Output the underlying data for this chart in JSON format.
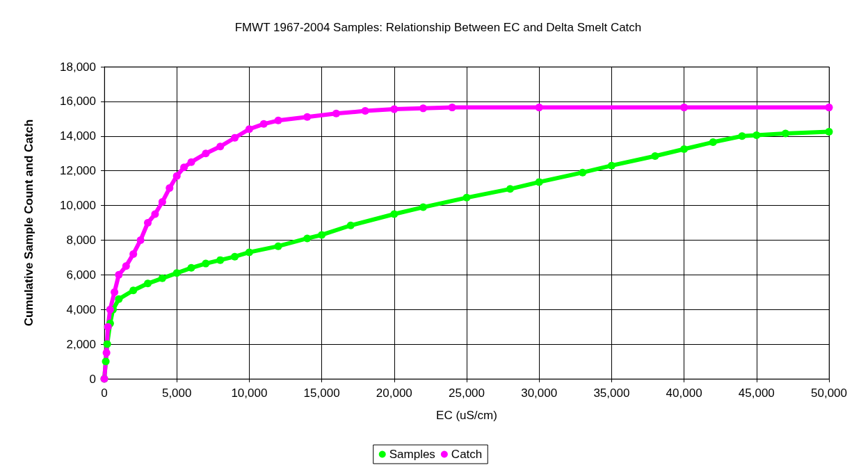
{
  "chart_data": {
    "type": "line",
    "title": "FMWT 1967-2004 Samples: Relationship Between EC and Delta Smelt Catch",
    "xlabel": "EC (uS/cm)",
    "ylabel": "Cumulative Sample Count and Catch",
    "xlim": [
      0,
      50000
    ],
    "xticks": [
      {
        "value": 0,
        "label": "0"
      },
      {
        "value": 5000,
        "label": "5,000"
      },
      {
        "value": 10000,
        "label": "10,000"
      },
      {
        "value": 15000,
        "label": "15,000"
      },
      {
        "value": 20000,
        "label": "20,000"
      },
      {
        "value": 25000,
        "label": "25,000"
      },
      {
        "value": 30000,
        "label": "30,000"
      },
      {
        "value": 35000,
        "label": "35,000"
      },
      {
        "value": 40000,
        "label": "40,000"
      },
      {
        "value": 45000,
        "label": "45,000"
      },
      {
        "value": 50000,
        "label": "50,000"
      }
    ],
    "ylim": [
      0,
      18000
    ],
    "yticks": [
      {
        "value": 0,
        "label": "0"
      },
      {
        "value": 2000,
        "label": "2,000"
      },
      {
        "value": 4000,
        "label": "4,000"
      },
      {
        "value": 6000,
        "label": "6,000"
      },
      {
        "value": 8000,
        "label": "8,000"
      },
      {
        "value": 10000,
        "label": "10,000"
      },
      {
        "value": 12000,
        "label": "12,000"
      },
      {
        "value": 14000,
        "label": "14,000"
      },
      {
        "value": 16000,
        "label": "16,000"
      },
      {
        "value": 18000,
        "label": "18,000"
      }
    ],
    "grid": true,
    "legend": "bottom",
    "marker": "circle",
    "series": [
      {
        "name": "Samples",
        "color": "#00ff00",
        "x": [
          0,
          100,
          200,
          400,
          600,
          1000,
          2000,
          3000,
          4000,
          5000,
          6000,
          7000,
          8000,
          9000,
          10000,
          12000,
          14000,
          15000,
          17000,
          20000,
          22000,
          25000,
          28000,
          30000,
          33000,
          35000,
          38000,
          40000,
          42000,
          44000,
          45000,
          47000,
          50000
        ],
        "values": [
          0,
          1000,
          2000,
          3200,
          4000,
          4600,
          5100,
          5500,
          5800,
          6100,
          6400,
          6650,
          6850,
          7050,
          7300,
          7650,
          8100,
          8300,
          8850,
          9500,
          9900,
          10450,
          10950,
          11350,
          11900,
          12300,
          12850,
          13250,
          13650,
          14000,
          14050,
          14150,
          14250
        ]
      },
      {
        "name": "Catch",
        "color": "#ff00ff",
        "x": [
          0,
          150,
          250,
          400,
          700,
          1000,
          1500,
          2000,
          2500,
          3000,
          3500,
          4000,
          4500,
          5000,
          5500,
          6000,
          7000,
          8000,
          9000,
          10000,
          11000,
          12000,
          14000,
          16000,
          18000,
          20000,
          22000,
          24000,
          30000,
          40000,
          50000
        ],
        "values": [
          0,
          1500,
          3000,
          4000,
          5000,
          6000,
          6500,
          7200,
          8000,
          9000,
          9500,
          10200,
          11000,
          11700,
          12200,
          12500,
          13000,
          13400,
          13900,
          14400,
          14700,
          14900,
          15100,
          15300,
          15450,
          15550,
          15600,
          15650,
          15650,
          15650,
          15650
        ]
      }
    ]
  }
}
